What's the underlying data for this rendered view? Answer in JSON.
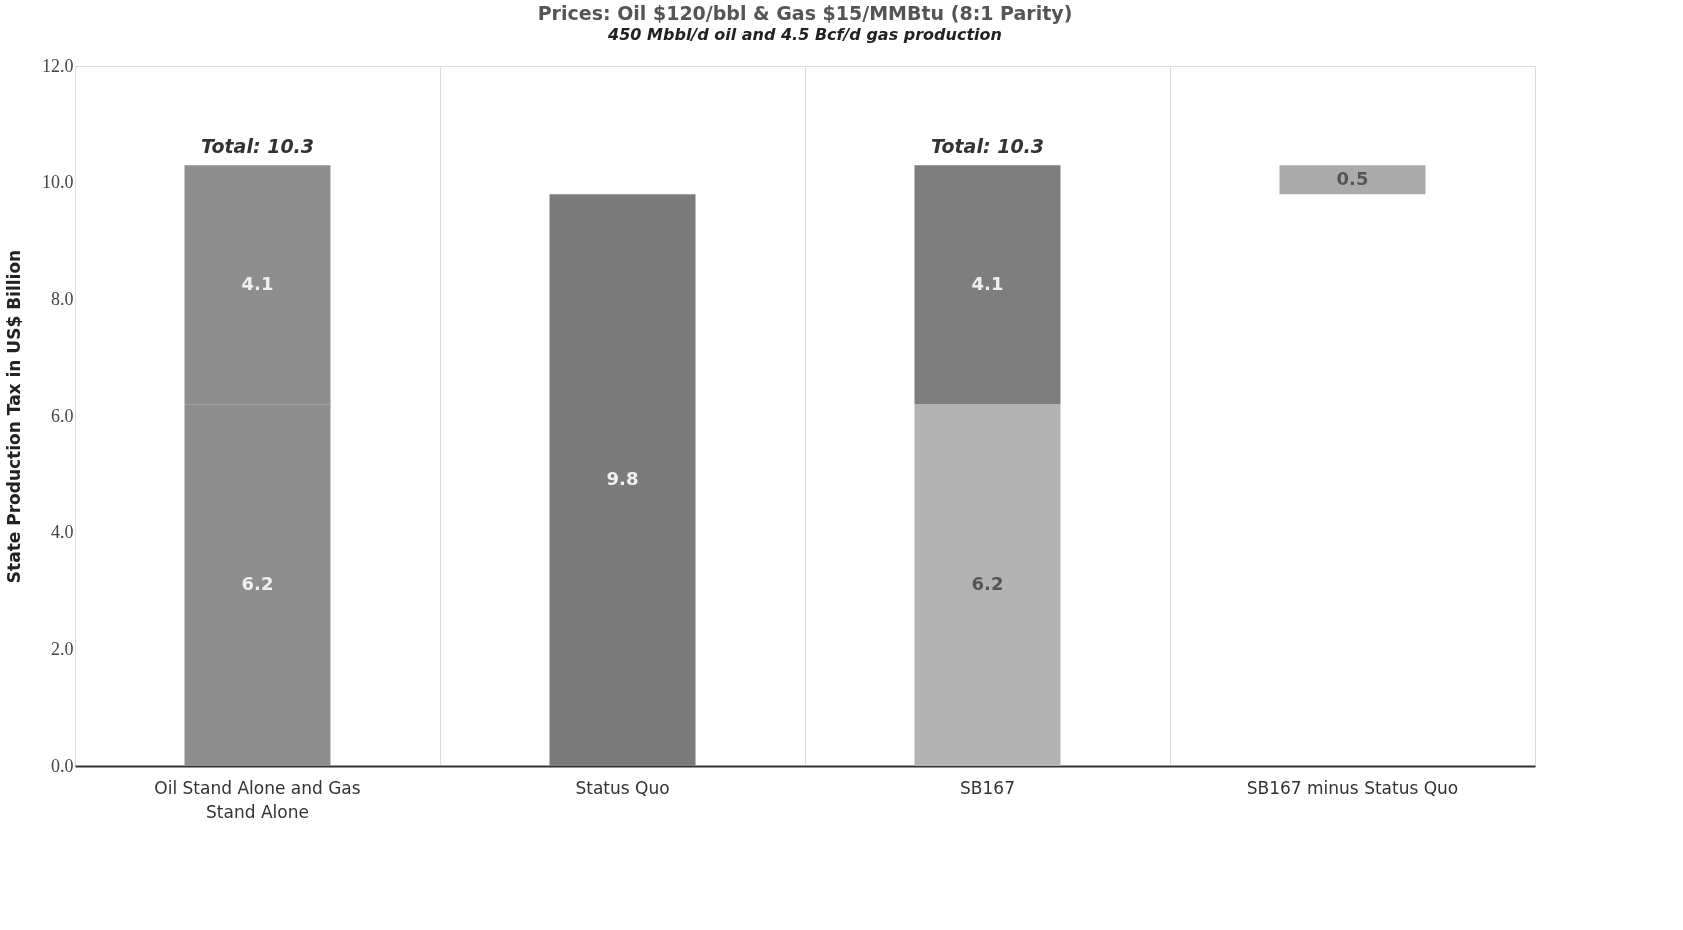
{
  "chart_data": {
    "type": "bar",
    "title": "Prices: Oil $120/bbl & Gas $15/MMBtu (8:1 Parity)",
    "subtitle": "450 Mbbl/d oil and 4.5 Bcf/d gas production",
    "ylabel": "State Production Tax in US$ Billion",
    "categories": [
      "Oil Stand Alone and Gas Stand Alone",
      "Status Quo",
      "SB167",
      "SB167 minus Status Quo"
    ],
    "stacked": true,
    "series": [
      {
        "colors": [
          "#8e8e8e",
          "#7b7b7b",
          "#b3b3b3",
          null
        ],
        "values": [
          6.2,
          9.8,
          6.2,
          null
        ]
      },
      {
        "colors": [
          "#8e8e8e",
          null,
          "#7e7e7e",
          "#ababab"
        ],
        "values": [
          4.1,
          null,
          4.1,
          0.5
        ],
        "base": [
          null,
          null,
          null,
          9.8
        ]
      }
    ],
    "data_labels": true,
    "totals": [
      "Total: 10.3",
      null,
      "Total: 10.3",
      null
    ],
    "ylim": [
      0,
      12
    ],
    "yticks": [
      {
        "value": 0,
        "label": "0.0"
      },
      {
        "value": 2,
        "label": "2.0"
      },
      {
        "value": 4,
        "label": "4.0"
      },
      {
        "value": 6,
        "label": "6.0"
      },
      {
        "value": 8,
        "label": "8.0"
      },
      {
        "value": 10,
        "label": "10.0"
      },
      {
        "value": 12,
        "label": "12.0"
      }
    ],
    "grid": "x"
  }
}
